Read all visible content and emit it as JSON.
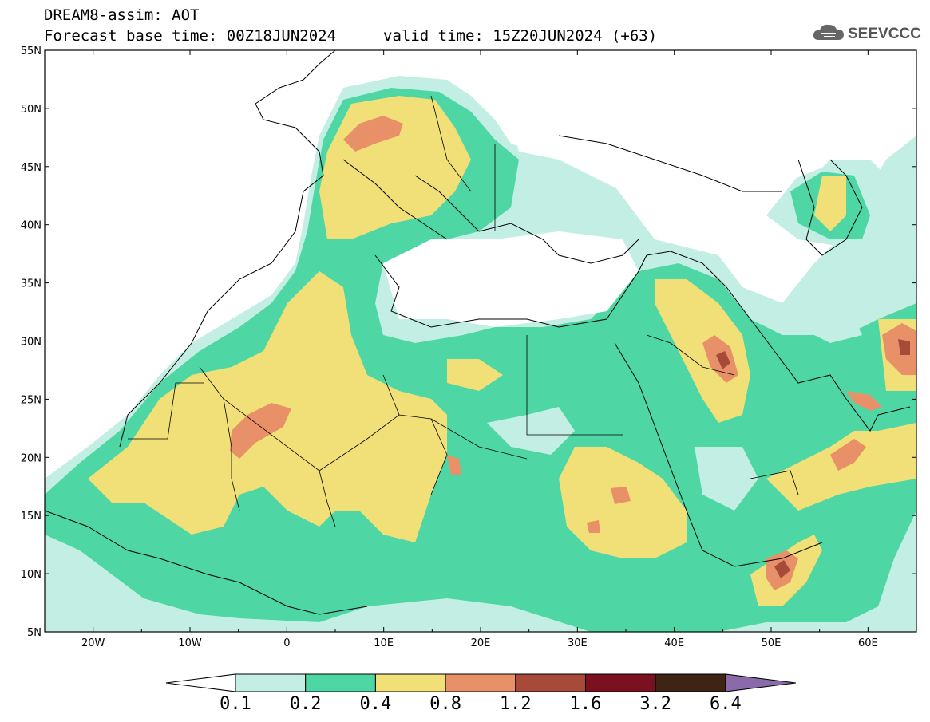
{
  "header": {
    "line1": "DREAM8-assim: AOT",
    "line2": "Forecast base time: 00Z18JUN2024",
    "valid": "valid time: 15Z20JUN2024 (+63)"
  },
  "logo": {
    "text": "SEEVCCC",
    "icon": "cloud-icon"
  },
  "map": {
    "lon_range": [
      -25,
      65
    ],
    "lat_range": [
      5,
      55
    ],
    "lon_ticks": [
      "20W",
      "10W",
      "0",
      "10E",
      "20E",
      "30E",
      "40E",
      "50E",
      "60E"
    ],
    "lat_ticks": [
      "5N",
      "10N",
      "15N",
      "20N",
      "25N",
      "30N",
      "35N",
      "40N",
      "45N",
      "50N",
      "55N"
    ],
    "variable": "AOT"
  },
  "colorbar": {
    "labels": [
      "0.1",
      "0.2",
      "0.4",
      "0.8",
      "1.2",
      "1.6",
      "3.2",
      "6.4"
    ],
    "colors": [
      "#ffffff",
      "#c2eee4",
      "#4ed6a4",
      "#f1e078",
      "#e89068",
      "#a84a3a",
      "#7a1020",
      "#3d2414",
      "#8a6aa8"
    ]
  }
}
